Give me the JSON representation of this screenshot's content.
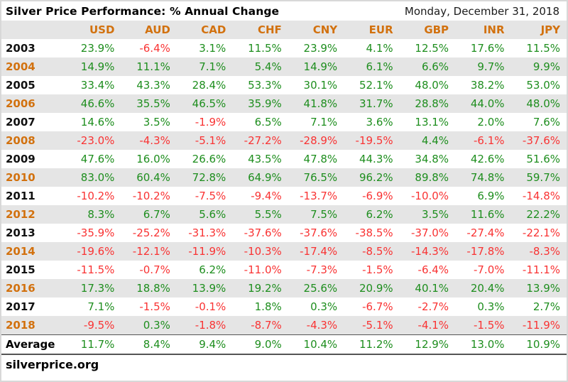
{
  "header": {
    "title": "Silver Price Performance: % Annual Change",
    "date": "Monday, December 31, 2018"
  },
  "table": {
    "columns": [
      "USD",
      "AUD",
      "CAD",
      "CHF",
      "CNY",
      "EUR",
      "GBP",
      "INR",
      "JPY"
    ],
    "rows": [
      {
        "year": "2003",
        "values": [
          "23.9%",
          "-6.4%",
          "3.1%",
          "11.5%",
          "23.9%",
          "4.1%",
          "12.5%",
          "17.6%",
          "11.5%"
        ]
      },
      {
        "year": "2004",
        "values": [
          "14.9%",
          "11.1%",
          "7.1%",
          "5.4%",
          "14.9%",
          "6.1%",
          "6.6%",
          "9.7%",
          "9.9%"
        ]
      },
      {
        "year": "2005",
        "values": [
          "33.4%",
          "43.3%",
          "28.4%",
          "53.3%",
          "30.1%",
          "52.1%",
          "48.0%",
          "38.2%",
          "53.0%"
        ]
      },
      {
        "year": "2006",
        "values": [
          "46.6%",
          "35.5%",
          "46.5%",
          "35.9%",
          "41.8%",
          "31.7%",
          "28.8%",
          "44.0%",
          "48.0%"
        ]
      },
      {
        "year": "2007",
        "values": [
          "14.6%",
          "3.5%",
          "-1.9%",
          "6.5%",
          "7.1%",
          "3.6%",
          "13.1%",
          "2.0%",
          "7.6%"
        ]
      },
      {
        "year": "2008",
        "values": [
          "-23.0%",
          "-4.3%",
          "-5.1%",
          "-27.2%",
          "-28.9%",
          "-19.5%",
          "4.4%",
          "-6.1%",
          "-37.6%"
        ]
      },
      {
        "year": "2009",
        "values": [
          "47.6%",
          "16.0%",
          "26.6%",
          "43.5%",
          "47.8%",
          "44.3%",
          "34.8%",
          "42.6%",
          "51.6%"
        ]
      },
      {
        "year": "2010",
        "values": [
          "83.0%",
          "60.4%",
          "72.8%",
          "64.9%",
          "76.5%",
          "96.2%",
          "89.8%",
          "74.8%",
          "59.7%"
        ]
      },
      {
        "year": "2011",
        "values": [
          "-10.2%",
          "-10.2%",
          "-7.5%",
          "-9.4%",
          "-13.7%",
          "-6.9%",
          "-10.0%",
          "6.9%",
          "-14.8%"
        ]
      },
      {
        "year": "2012",
        "values": [
          "8.3%",
          "6.7%",
          "5.6%",
          "5.5%",
          "7.5%",
          "6.2%",
          "3.5%",
          "11.6%",
          "22.2%"
        ]
      },
      {
        "year": "2013",
        "values": [
          "-35.9%",
          "-25.2%",
          "-31.3%",
          "-37.6%",
          "-37.6%",
          "-38.5%",
          "-37.0%",
          "-27.4%",
          "-22.1%"
        ]
      },
      {
        "year": "2014",
        "values": [
          "-19.6%",
          "-12.1%",
          "-11.9%",
          "-10.3%",
          "-17.4%",
          "-8.5%",
          "-14.3%",
          "-17.8%",
          "-8.3%"
        ]
      },
      {
        "year": "2015",
        "values": [
          "-11.5%",
          "-0.7%",
          "6.2%",
          "-11.0%",
          "-7.3%",
          "-1.5%",
          "-6.4%",
          "-7.0%",
          "-11.1%"
        ]
      },
      {
        "year": "2016",
        "values": [
          "17.3%",
          "18.8%",
          "13.9%",
          "19.2%",
          "25.6%",
          "20.9%",
          "40.1%",
          "20.4%",
          "13.9%"
        ]
      },
      {
        "year": "2017",
        "values": [
          "7.1%",
          "-1.5%",
          "-0.1%",
          "1.8%",
          "0.3%",
          "-6.7%",
          "-2.7%",
          "0.3%",
          "2.7%"
        ]
      },
      {
        "year": "2018",
        "values": [
          "-9.5%",
          "0.3%",
          "-1.8%",
          "-8.7%",
          "-4.3%",
          "-5.1%",
          "-4.1%",
          "-1.5%",
          "-11.9%"
        ]
      }
    ],
    "average": {
      "label": "Average",
      "values": [
        "11.7%",
        "8.4%",
        "9.4%",
        "9.0%",
        "10.4%",
        "11.2%",
        "12.9%",
        "13.0%",
        "10.9%"
      ]
    }
  },
  "footer": {
    "site": "silverprice.org"
  },
  "colors": {
    "positive": "#1E8E1E",
    "negative": "#F93333",
    "accent_orange": "#D2710E",
    "stripe_gray": "#E5E5E5"
  },
  "chart_data": {
    "type": "table",
    "title": "Silver Price Performance: % Annual Change",
    "subtitle": "Monday, December 31, 2018",
    "categories": [
      "2003",
      "2004",
      "2005",
      "2006",
      "2007",
      "2008",
      "2009",
      "2010",
      "2011",
      "2012",
      "2013",
      "2014",
      "2015",
      "2016",
      "2017",
      "2018"
    ],
    "series": [
      {
        "name": "USD",
        "values": [
          23.9,
          14.9,
          33.4,
          46.6,
          14.6,
          -23.0,
          47.6,
          83.0,
          -10.2,
          8.3,
          -35.9,
          -19.6,
          -11.5,
          17.3,
          7.1,
          -9.5
        ],
        "average": 11.7
      },
      {
        "name": "AUD",
        "values": [
          -6.4,
          11.1,
          43.3,
          35.5,
          3.5,
          -4.3,
          16.0,
          60.4,
          -10.2,
          6.7,
          -25.2,
          -12.1,
          -0.7,
          18.8,
          -1.5,
          0.3
        ],
        "average": 8.4
      },
      {
        "name": "CAD",
        "values": [
          3.1,
          7.1,
          28.4,
          46.5,
          -1.9,
          -5.1,
          26.6,
          72.8,
          -7.5,
          5.6,
          -31.3,
          -11.9,
          6.2,
          13.9,
          -0.1,
          -1.8
        ],
        "average": 9.4
      },
      {
        "name": "CHF",
        "values": [
          11.5,
          5.4,
          53.3,
          35.9,
          6.5,
          -27.2,
          43.5,
          64.9,
          -9.4,
          5.5,
          -37.6,
          -10.3,
          -11.0,
          19.2,
          1.8,
          -8.7
        ],
        "average": 9.0
      },
      {
        "name": "CNY",
        "values": [
          23.9,
          14.9,
          30.1,
          41.8,
          7.1,
          -28.9,
          47.8,
          76.5,
          -13.7,
          7.5,
          -37.6,
          -17.4,
          -7.3,
          25.6,
          0.3,
          -4.3
        ],
        "average": 10.4
      },
      {
        "name": "EUR",
        "values": [
          4.1,
          6.1,
          52.1,
          31.7,
          3.6,
          -19.5,
          44.3,
          96.2,
          -6.9,
          6.2,
          -38.5,
          -8.5,
          -1.5,
          20.9,
          -6.7,
          -5.1
        ],
        "average": 11.2
      },
      {
        "name": "GBP",
        "values": [
          12.5,
          6.6,
          48.0,
          28.8,
          13.1,
          4.4,
          34.8,
          89.8,
          -10.0,
          3.5,
          -37.0,
          -14.3,
          -6.4,
          40.1,
          -2.7,
          -4.1
        ],
        "average": 12.9
      },
      {
        "name": "INR",
        "values": [
          17.6,
          9.7,
          38.2,
          44.0,
          2.0,
          -6.1,
          42.6,
          74.8,
          6.9,
          11.6,
          -27.4,
          -17.8,
          -7.0,
          20.4,
          0.3,
          -1.5
        ],
        "average": 13.0
      },
      {
        "name": "JPY",
        "values": [
          11.5,
          9.9,
          53.0,
          48.0,
          7.6,
          -37.6,
          51.6,
          59.7,
          -14.8,
          22.2,
          -22.1,
          -8.3,
          -11.1,
          13.9,
          2.7,
          -11.9
        ],
        "average": 10.9
      }
    ],
    "value_unit": "percent",
    "positive_color": "#1E8E1E",
    "negative_color": "#F93333",
    "source": "silverprice.org"
  }
}
